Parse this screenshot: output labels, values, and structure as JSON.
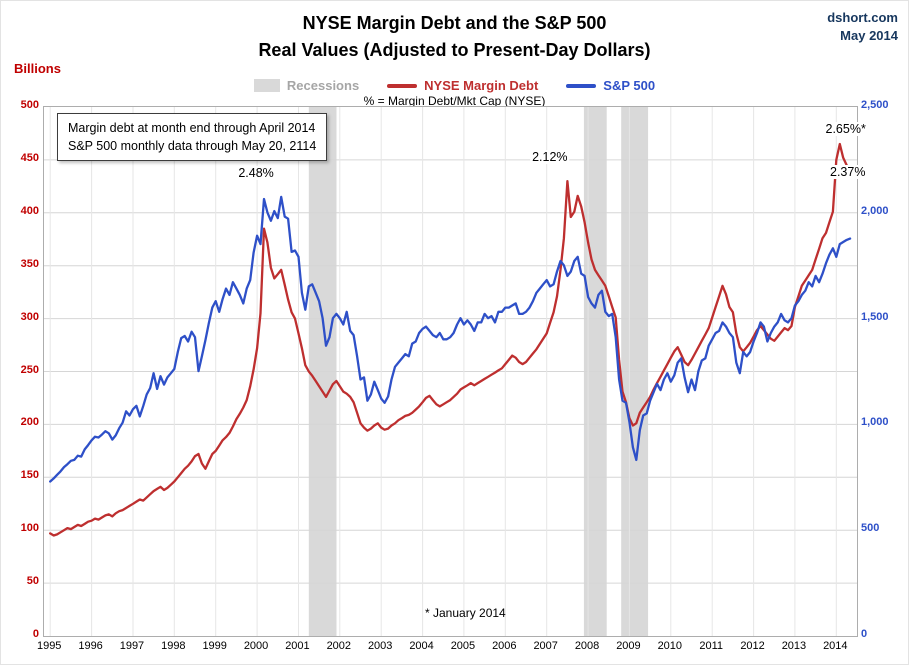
{
  "header": {
    "title_line1": "NYSE Margin Debt and the S&P 500",
    "title_line2": "Real Values (Adjusted to Present-Day Dollars)",
    "brand_line1": "dshort.com",
    "brand_line2": "May 2014"
  },
  "colors": {
    "red": "#BE2F2F",
    "blue": "#2E50C8",
    "navy": "#17375E",
    "axis_red": "#C00000",
    "recession": "#D9D9D9",
    "grid": "#D6D6D6",
    "grid_v": "#E6E6E6",
    "gray_text": "#A6A6A6"
  },
  "legend": {
    "recessions_label": "Recessions",
    "margin_debt_label": "NYSE Margin Debt",
    "sp500_label": "S&P 500"
  },
  "subtitle": "% = Margin Debt/Mkt Cap (NYSE)",
  "axes": {
    "left_label": "Billions",
    "left_ticks": [
      500,
      450,
      400,
      350,
      300,
      250,
      200,
      150,
      100,
      50,
      0
    ],
    "right_tick_values": [
      2500,
      2000,
      1500,
      1000,
      500,
      0
    ],
    "right_tick_labels": [
      "2,500",
      "2,000",
      "1,500",
      "1,000",
      "500",
      "0"
    ],
    "x_ticks": [
      1995,
      1996,
      1997,
      1998,
      1999,
      2000,
      2001,
      2002,
      2003,
      2004,
      2005,
      2006,
      2007,
      2008,
      2009,
      2010,
      2011,
      2012,
      2013,
      2014
    ]
  },
  "note_box": {
    "line1": "Margin debt at month end through April 2014",
    "line2": "S&P 500 monthly data through May 20, 2114"
  },
  "footnote": "* January 2014",
  "chart_data": {
    "type": "line",
    "title": "NYSE Margin Debt and the S&P 500 — Real Values (Adjusted to Present-Day Dollars)",
    "x_start_year": 1995,
    "x_interval": "monthly",
    "xlim": [
      1995,
      2014.5
    ],
    "left_ylim": [
      0,
      500
    ],
    "right_ylim": [
      0,
      2500
    ],
    "grid": true,
    "legend_position": "top",
    "recessions": [
      [
        2001.25,
        2001.92
      ],
      [
        2007.9,
        2008.45
      ],
      [
        2008.8,
        2009.45
      ]
    ],
    "annotations": [
      {
        "label": "2.48%",
        "x": 2000.0,
        "y": 437
      },
      {
        "label": "2.12%",
        "x": 2007.1,
        "y": 452
      },
      {
        "label": "2.65%*",
        "x": 2014.25,
        "y": 478
      },
      {
        "label": "2.37%",
        "x": 2014.3,
        "y": 438
      }
    ],
    "series": [
      {
        "name": "NYSE Margin Debt",
        "axis": "left",
        "units": "billions of present-day dollars",
        "color": "#BE2F2F",
        "values": [
          97,
          95,
          96,
          98,
          100,
          102,
          101,
          103,
          105,
          104,
          106,
          108,
          109,
          111,
          110,
          112,
          114,
          115,
          113,
          116,
          118,
          119,
          121,
          123,
          125,
          127,
          129,
          128,
          131,
          134,
          137,
          139,
          141,
          138,
          140,
          143,
          146,
          150,
          154,
          158,
          161,
          165,
          170,
          172,
          163,
          158,
          165,
          172,
          175,
          180,
          185,
          188,
          192,
          198,
          205,
          210,
          216,
          223,
          236,
          252,
          272,
          305,
          385,
          372,
          348,
          338,
          342,
          346,
          332,
          318,
          306,
          300,
          286,
          272,
          256,
          250,
          246,
          241,
          236,
          231,
          226,
          232,
          238,
          241,
          236,
          231,
          229,
          226,
          221,
          211,
          201,
          197,
          194,
          196,
          199,
          201,
          197,
          195,
          196,
          199,
          201,
          204,
          206,
          208,
          209,
          211,
          214,
          217,
          221,
          225,
          227,
          223,
          219,
          217,
          219,
          221,
          223,
          226,
          229,
          233,
          235,
          237,
          239,
          237,
          239,
          241,
          243,
          245,
          247,
          249,
          251,
          253,
          257,
          261,
          265,
          263,
          259,
          257,
          259,
          263,
          267,
          271,
          276,
          281,
          286,
          296,
          306,
          321,
          346,
          376,
          430,
          396,
          401,
          416,
          406,
          391,
          372,
          356,
          346,
          341,
          336,
          331,
          321,
          311,
          301,
          261,
          231,
          221,
          206,
          199,
          201,
          211,
          216,
          221,
          226,
          233,
          239,
          245,
          251,
          257,
          263,
          269,
          273,
          266,
          259,
          256,
          261,
          267,
          273,
          279,
          285,
          291,
          301,
          311,
          321,
          331,
          323,
          311,
          306,
          286,
          273,
          269,
          273,
          277,
          283,
          289,
          293,
          289,
          285,
          281,
          279,
          283,
          287,
          291,
          289,
          293,
          311,
          321,
          331,
          336,
          341,
          346,
          356,
          366,
          376,
          381,
          391,
          401,
          450,
          465,
          452,
          445
        ]
      },
      {
        "name": "S&P 500",
        "axis": "right",
        "units": "index, present-day dollars",
        "color": "#2E50C8",
        "values": [
          730,
          745,
          762,
          778,
          798,
          812,
          828,
          832,
          852,
          848,
          882,
          902,
          925,
          942,
          938,
          952,
          968,
          958,
          928,
          948,
          982,
          1008,
          1062,
          1042,
          1072,
          1088,
          1038,
          1088,
          1142,
          1172,
          1242,
          1168,
          1228,
          1188,
          1222,
          1242,
          1262,
          1342,
          1408,
          1418,
          1392,
          1438,
          1412,
          1252,
          1322,
          1398,
          1478,
          1552,
          1582,
          1532,
          1592,
          1642,
          1612,
          1672,
          1642,
          1612,
          1572,
          1642,
          1682,
          1812,
          1892,
          1852,
          2065,
          2002,
          1962,
          2008,
          1975,
          2075,
          1982,
          1972,
          1815,
          1822,
          1792,
          1622,
          1542,
          1652,
          1662,
          1622,
          1582,
          1502,
          1372,
          1412,
          1502,
          1522,
          1502,
          1472,
          1532,
          1442,
          1422,
          1322,
          1212,
          1222,
          1112,
          1142,
          1202,
          1162,
          1122,
          1102,
          1132,
          1212,
          1272,
          1292,
          1312,
          1332,
          1322,
          1382,
          1392,
          1432,
          1452,
          1462,
          1442,
          1422,
          1412,
          1432,
          1402,
          1402,
          1412,
          1432,
          1472,
          1502,
          1472,
          1492,
          1472,
          1442,
          1482,
          1482,
          1522,
          1502,
          1512,
          1482,
          1532,
          1532,
          1552,
          1552,
          1562,
          1572,
          1522,
          1522,
          1532,
          1552,
          1582,
          1622,
          1642,
          1662,
          1682,
          1652,
          1662,
          1722,
          1772,
          1752,
          1702,
          1722,
          1772,
          1792,
          1712,
          1702,
          1602,
          1572,
          1552,
          1612,
          1632,
          1532,
          1512,
          1522,
          1412,
          1212,
          1112,
          1102,
          1012,
          892,
          832,
          972,
          1042,
          1052,
          1112,
          1152,
          1192,
          1162,
          1212,
          1242,
          1202,
          1232,
          1292,
          1312,
          1222,
          1152,
          1212,
          1162,
          1252,
          1302,
          1312,
          1372,
          1402,
          1432,
          1442,
          1482,
          1462,
          1432,
          1412,
          1292,
          1242,
          1342,
          1322,
          1342,
          1392,
          1432,
          1482,
          1462,
          1392,
          1432,
          1462,
          1482,
          1522,
          1492,
          1482,
          1502,
          1562,
          1582,
          1612,
          1632,
          1672,
          1652,
          1702,
          1672,
          1712,
          1762,
          1802,
          1832,
          1792,
          1852,
          1862,
          1872,
          1878
        ]
      }
    ]
  }
}
